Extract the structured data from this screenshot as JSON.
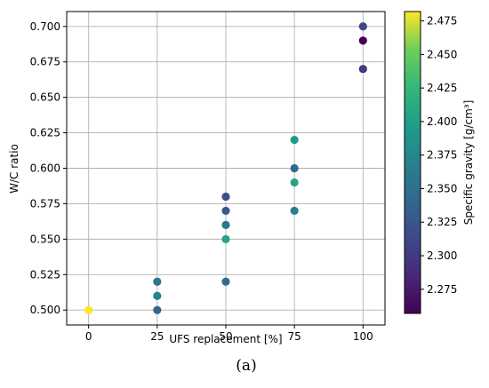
{
  "chart_data": {
    "type": "scatter",
    "title": "",
    "xlabel": "UFS replacement [%]",
    "ylabel": "W/C ratio",
    "xlim": [
      -8,
      108
    ],
    "ylim": [
      0.4895,
      0.7105
    ],
    "xticks": [
      0,
      25,
      50,
      75,
      100
    ],
    "yticks": [
      0.5,
      0.525,
      0.55,
      0.575,
      0.6,
      0.625,
      0.65,
      0.675,
      0.7
    ],
    "xtick_labels": [
      "0",
      "25",
      "50",
      "75",
      "100"
    ],
    "ytick_labels": [
      "0.500",
      "0.525",
      "0.550",
      "0.575",
      "0.600",
      "0.625",
      "0.650",
      "0.675",
      "0.700"
    ],
    "grid": true,
    "colormap": "viridis",
    "colorbar": {
      "label": "Specific gravity [g/cm³]",
      "range": [
        2.257,
        2.482
      ],
      "ticks": [
        2.275,
        2.3,
        2.325,
        2.35,
        2.375,
        2.4,
        2.425,
        2.45,
        2.475
      ],
      "tick_labels": [
        "2.275",
        "2.300",
        "2.325",
        "2.350",
        "2.375",
        "2.400",
        "2.425",
        "2.450",
        "2.475"
      ]
    },
    "points": [
      {
        "x": 0,
        "y": 0.5,
        "c": 2.482
      },
      {
        "x": 25,
        "y": 0.52,
        "c": 2.355
      },
      {
        "x": 25,
        "y": 0.51,
        "c": 2.372
      },
      {
        "x": 25,
        "y": 0.5,
        "c": 2.34
      },
      {
        "x": 50,
        "y": 0.58,
        "c": 2.32
      },
      {
        "x": 50,
        "y": 0.57,
        "c": 2.33
      },
      {
        "x": 50,
        "y": 0.56,
        "c": 2.355
      },
      {
        "x": 50,
        "y": 0.55,
        "c": 2.405
      },
      {
        "x": 50,
        "y": 0.52,
        "c": 2.345
      },
      {
        "x": 75,
        "y": 0.62,
        "c": 2.395
      },
      {
        "x": 75,
        "y": 0.6,
        "c": 2.345
      },
      {
        "x": 75,
        "y": 0.59,
        "c": 2.405
      },
      {
        "x": 75,
        "y": 0.57,
        "c": 2.365
      },
      {
        "x": 100,
        "y": 0.7,
        "c": 2.31
      },
      {
        "x": 100,
        "y": 0.69,
        "c": 2.257
      },
      {
        "x": 100,
        "y": 0.67,
        "c": 2.3
      }
    ]
  },
  "caption": "(a)"
}
